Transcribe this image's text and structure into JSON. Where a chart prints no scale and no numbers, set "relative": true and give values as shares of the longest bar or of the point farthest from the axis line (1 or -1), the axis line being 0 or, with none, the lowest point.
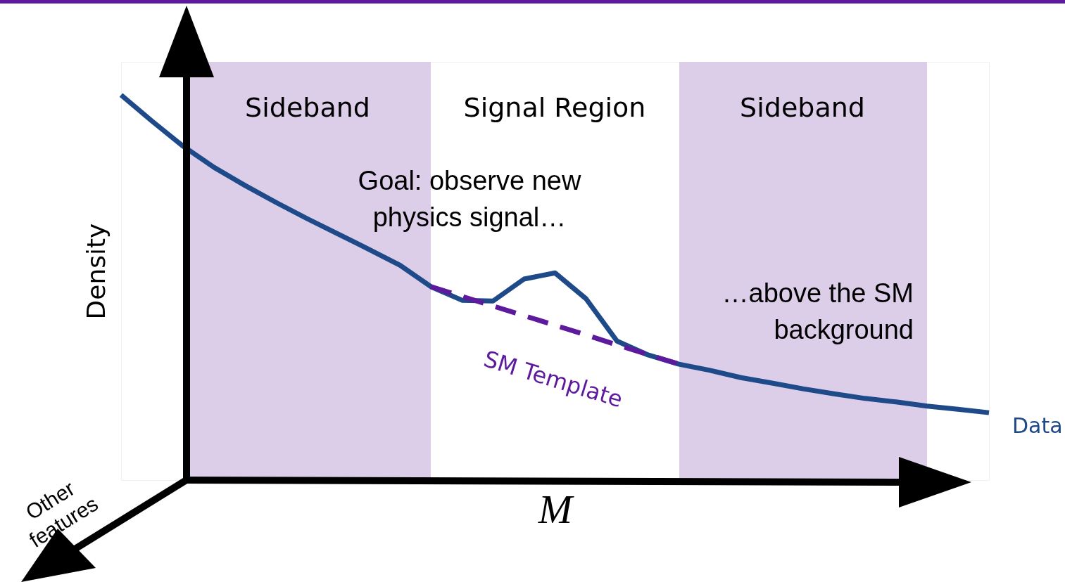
{
  "chart_data": {
    "type": "line",
    "relative": true,
    "xlabel": "M",
    "ylabel": "Density",
    "tick_labels": false,
    "categories": [
      null,
      null,
      null,
      null,
      null,
      null,
      null,
      null,
      null,
      null,
      null,
      null,
      null,
      null,
      null,
      null,
      null,
      null,
      null,
      null,
      null,
      null,
      null,
      null,
      null,
      null,
      null,
      null,
      null
    ],
    "series": [
      {
        "name": "Data",
        "color": "#1f4a8a",
        "values": [
          1,
          0.932,
          0.867,
          0.812,
          0.765,
          0.721,
          0.679,
          0.639,
          0.599,
          0.558,
          0.502,
          0.467,
          0.465,
          0.522,
          0.538,
          0.471,
          0.361,
          0.325,
          0.301,
          0.285,
          0.266,
          0.252,
          0.237,
          0.224,
          0.212,
          0.203,
          0.192,
          0.184,
          0.175
        ]
      },
      {
        "name": "SM Template",
        "color": "#5e1a9c",
        "line_style": "dashed",
        "values": [
          null,
          null,
          null,
          null,
          null,
          null,
          null,
          null,
          null,
          null,
          0.502,
          0.477,
          0.452,
          0.427,
          0.402,
          0.377,
          0.351,
          0.326,
          0.301,
          null,
          null,
          null,
          null,
          null,
          null,
          null,
          null,
          null,
          null
        ]
      }
    ],
    "annotations": [
      "Sideband",
      "Signal Region",
      "Sideband",
      "Goal: observe new physics signal…",
      "…above the SM background",
      "Other features"
    ]
  }
}
